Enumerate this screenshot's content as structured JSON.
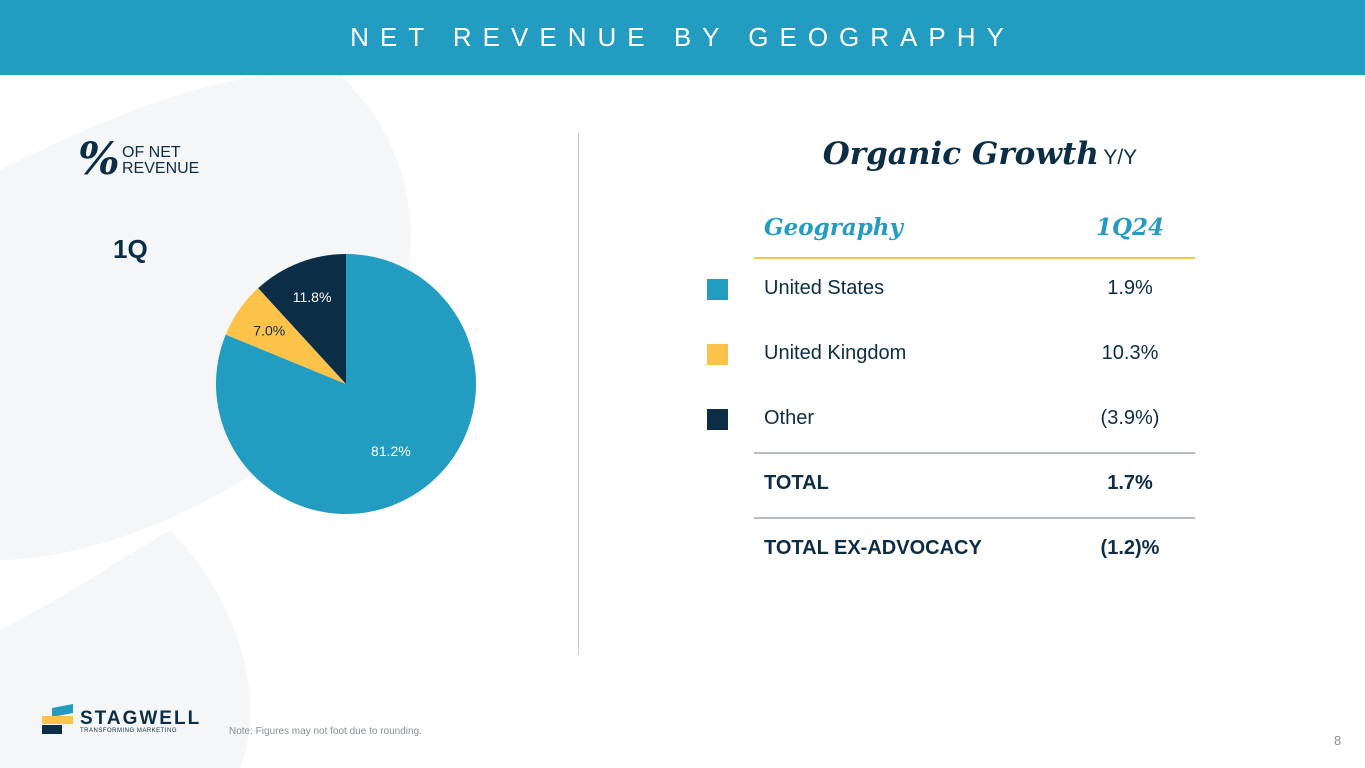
{
  "colors": {
    "header_bg": "#229cc0",
    "us": "#229cc0",
    "uk": "#fbc34a",
    "other": "#0b2d45",
    "accent_gold": "#f4c64a",
    "navy": "#0b2d45"
  },
  "header": {
    "title": "NET REVENUE BY GEOGRAPHY"
  },
  "left_panel": {
    "percent_symbol": "%",
    "percent_label": "OF NET REVENUE",
    "period": "1Q"
  },
  "chart_data": {
    "type": "pie",
    "title": "",
    "slices": [
      {
        "label": "81.2%",
        "value": 81.2,
        "color": "#229cc0"
      },
      {
        "label": "7.0%",
        "value": 7.0,
        "color": "#fbc34a"
      },
      {
        "label": "11.8%",
        "value": 11.8,
        "color": "#0b2d45"
      }
    ],
    "start_angle_deg": 0,
    "direction": "clockwise"
  },
  "table": {
    "title": "Organic Growth",
    "title_suffix": "Y/Y",
    "headers": [
      "Geography",
      "1Q24"
    ],
    "rows": [
      {
        "swatch_color": "#229cc0",
        "name": "United States",
        "value": "1.9%"
      },
      {
        "swatch_color": "#fbc34a",
        "name": "United Kingdom",
        "value": "10.3%"
      },
      {
        "swatch_color": "#0b2d45",
        "name": "Other",
        "value": "(3.9%)"
      }
    ],
    "totals": [
      {
        "name": "TOTAL",
        "value": "1.7%"
      },
      {
        "name": "TOTAL EX-ADVOCACY",
        "value": "(1.2)%"
      }
    ]
  },
  "footer": {
    "logo_word": "STAGWELL",
    "logo_tagline": "TRANSFORMING MARKETING",
    "note": "Note: Figures may not foot due to rounding.",
    "page_number": "8"
  }
}
